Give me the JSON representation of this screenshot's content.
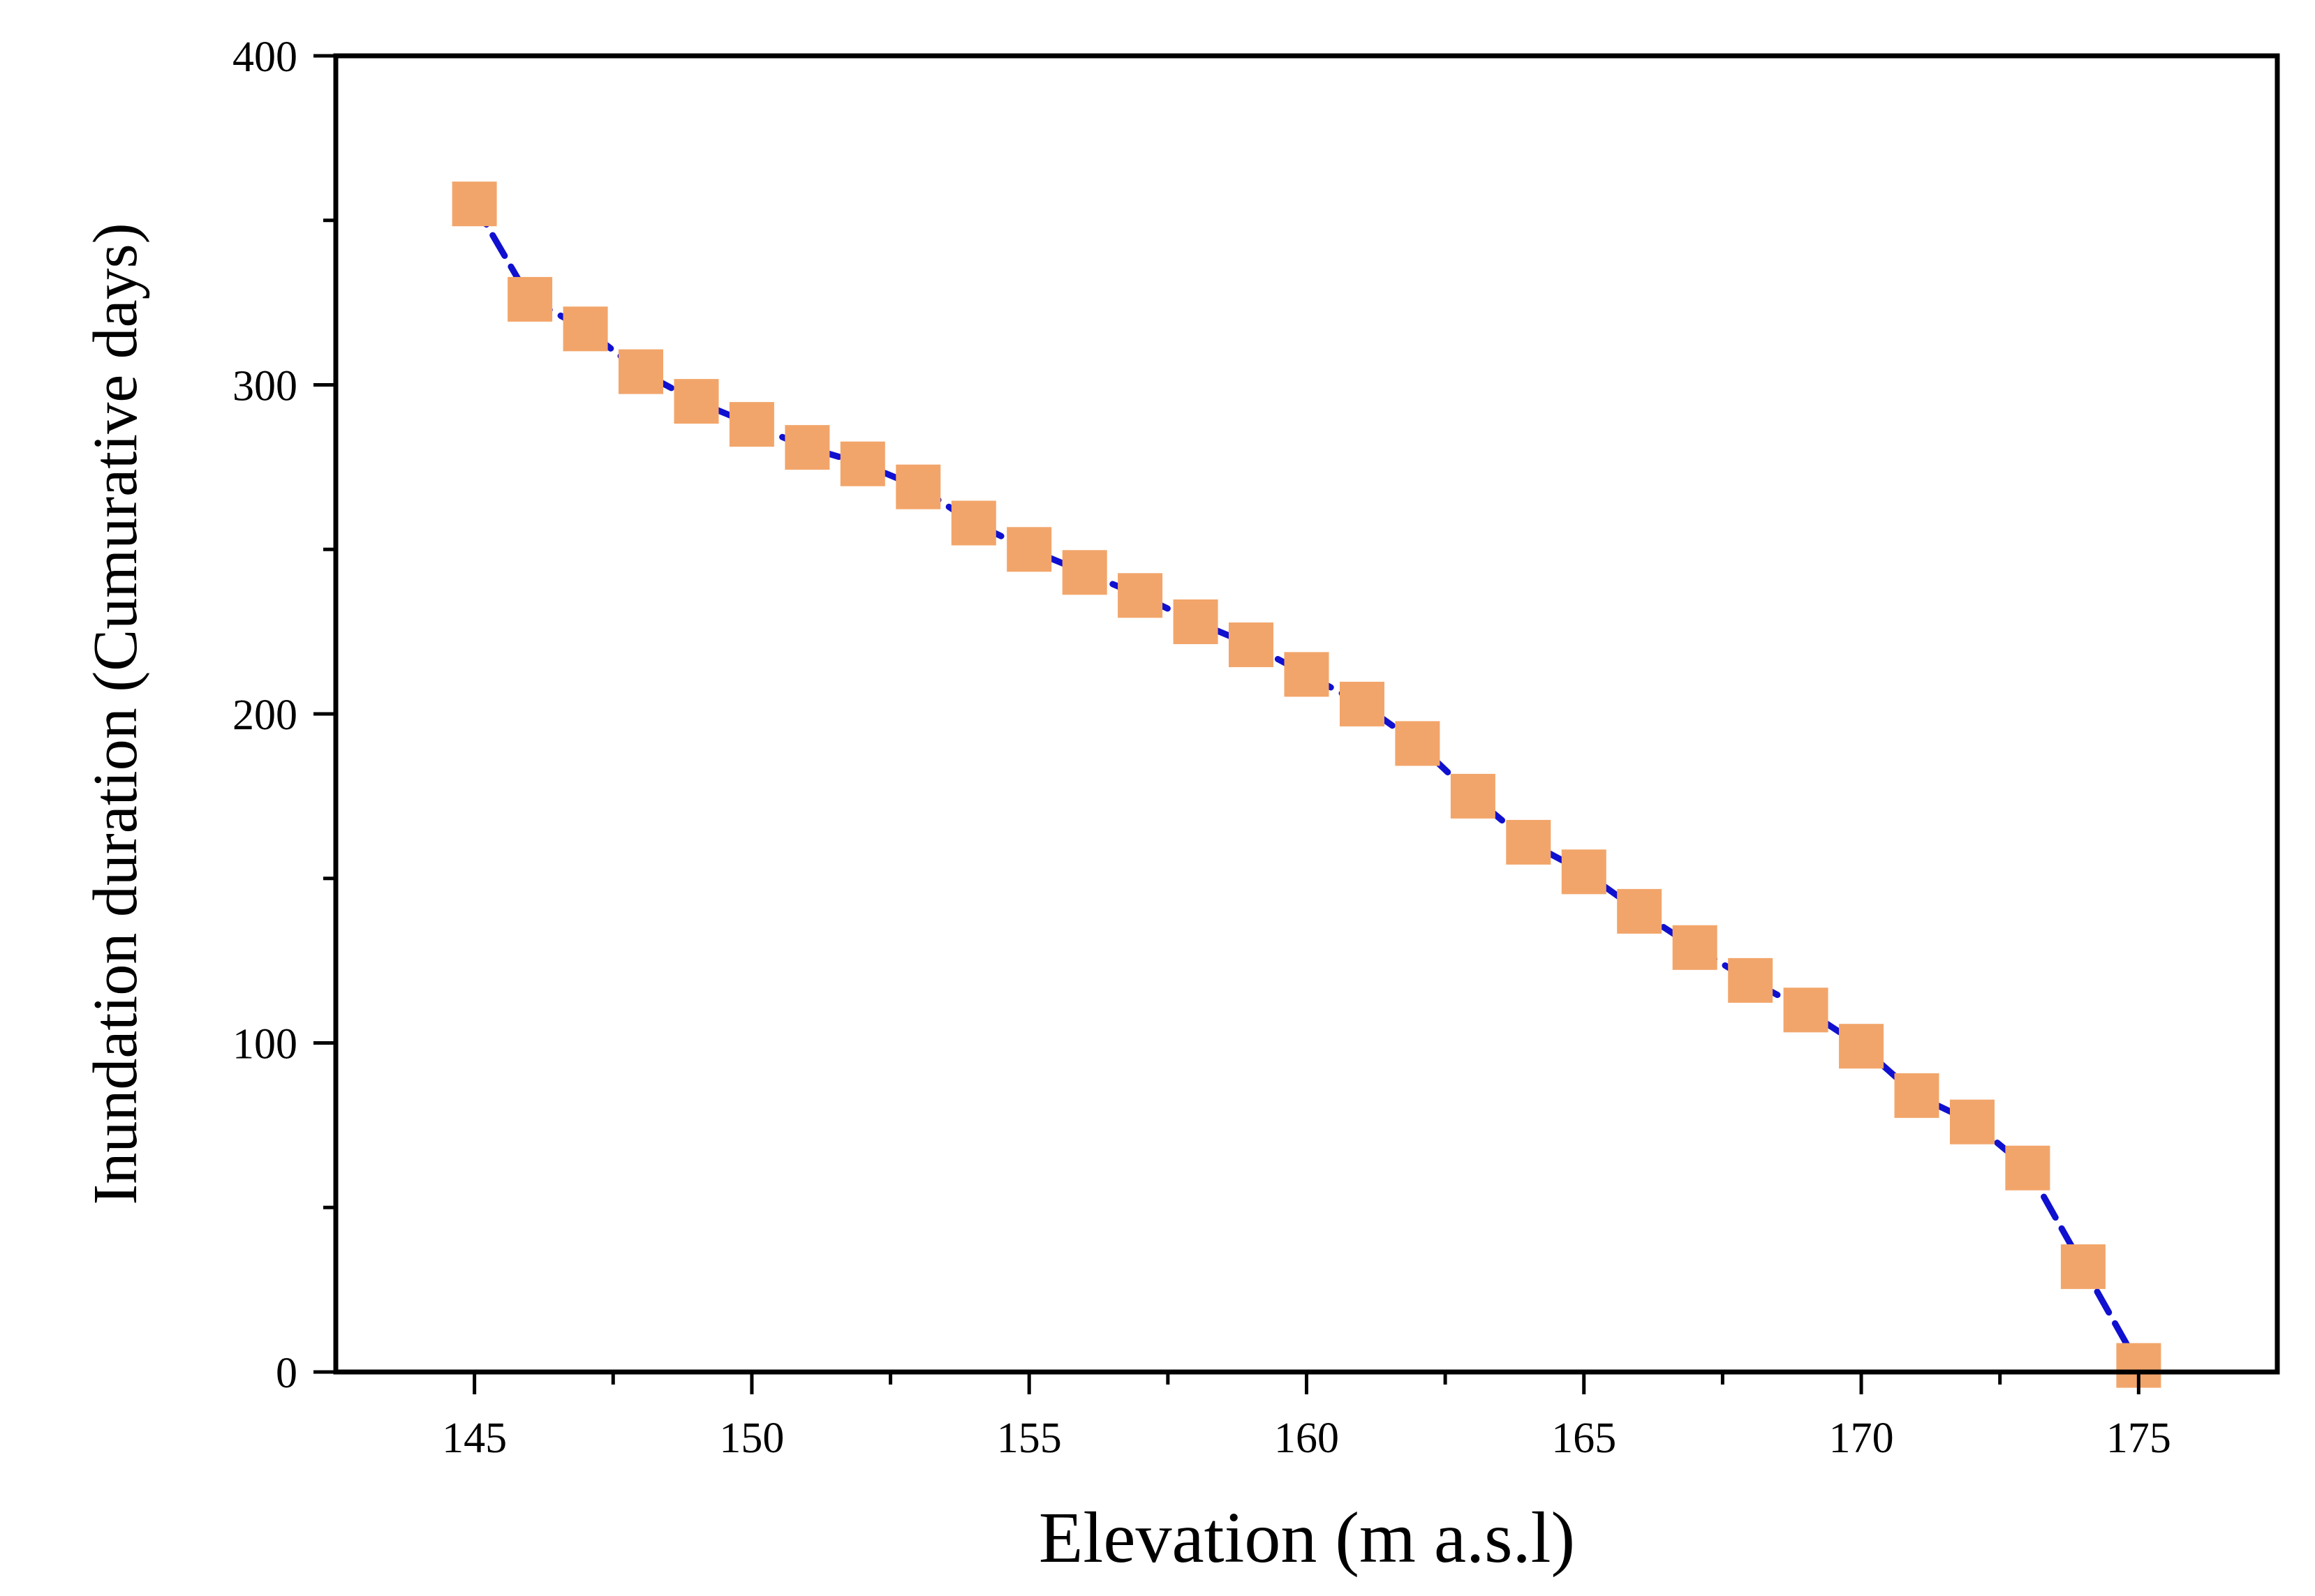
{
  "chart_data": {
    "type": "line",
    "title": "",
    "xlabel": "Elevation (m a.s.l)",
    "ylabel": "Inundation duration (Cumurative days)",
    "xlim": [
      142.5,
      177.5
    ],
    "ylim": [
      0,
      400
    ],
    "x_ticks": [
      145,
      150,
      155,
      160,
      165,
      170,
      175
    ],
    "y_ticks": [
      0,
      100,
      200,
      300,
      400
    ],
    "grid": false,
    "legend": null,
    "series": [
      {
        "name": "Inundation duration",
        "line_color": "#1010d0",
        "line_style": "dashed",
        "marker": "square",
        "marker_color": "#f2a56a",
        "x": [
          145,
          146,
          147,
          148,
          149,
          150,
          151,
          152,
          153,
          154,
          155,
          156,
          157,
          158,
          159,
          160,
          161,
          162,
          163,
          164,
          165,
          166,
          167,
          168,
          169,
          170,
          171,
          172,
          173,
          174,
          175
        ],
        "y": [
          355,
          326,
          317,
          304,
          295,
          288,
          281,
          276,
          269,
          258,
          250,
          243,
          236,
          228,
          221,
          212,
          203,
          191,
          175,
          161,
          152,
          140,
          129,
          119,
          110,
          99,
          84,
          76,
          62,
          32,
          2
        ]
      }
    ]
  }
}
